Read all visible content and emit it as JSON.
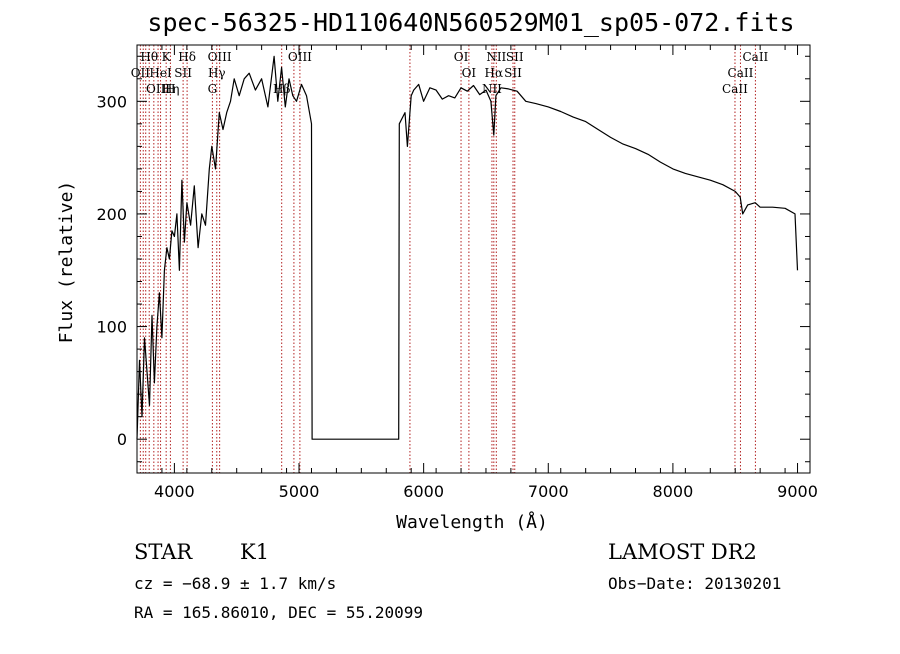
{
  "chart_data": {
    "type": "line",
    "title": "spec-56325-HD110640N560529M01_sp05-072.fits",
    "xlabel": "Wavelength (Å)",
    "ylabel": "Flux (relative)",
    "xlim": [
      3700,
      9100
    ],
    "ylim": [
      -30,
      350
    ],
    "grid": false,
    "x_ticks": [
      4000,
      5000,
      6000,
      7000,
      8000,
      9000
    ],
    "y_ticks": [
      0,
      100,
      200,
      300
    ],
    "series": [
      {
        "x": [
          3700,
          3720,
          3740,
          3760,
          3780,
          3800,
          3820,
          3840,
          3860,
          3880,
          3900,
          3920,
          3940,
          3960,
          3980,
          4000,
          4020,
          4040,
          4060,
          4080,
          4100,
          4130,
          4160,
          4190,
          4220,
          4250,
          4280,
          4300,
          4330,
          4360,
          4390,
          4420,
          4450,
          4480,
          4520,
          4560,
          4600,
          4650,
          4700,
          4750,
          4800,
          4830,
          4860,
          4890,
          4920,
          4950,
          4980,
          5020,
          5060,
          5100,
          5105,
          5800,
          5805,
          5850,
          5870,
          5900,
          5920,
          5960,
          6000,
          6050,
          6100,
          6150,
          6200,
          6250,
          6300,
          6350,
          6400,
          6450,
          6500,
          6540,
          6563,
          6580,
          6620,
          6680,
          6750,
          6820,
          6900,
          7000,
          7100,
          7200,
          7300,
          7400,
          7500,
          7600,
          7700,
          7800,
          7900,
          8000,
          8100,
          8200,
          8300,
          8400,
          8500,
          8540,
          8560,
          8600,
          8660,
          8700,
          8800,
          8900,
          8980,
          9000
        ],
        "y": [
          0,
          70,
          20,
          90,
          60,
          30,
          110,
          50,
          100,
          130,
          90,
          150,
          170,
          160,
          185,
          180,
          200,
          150,
          230,
          175,
          210,
          190,
          225,
          170,
          200,
          190,
          240,
          260,
          240,
          290,
          275,
          290,
          300,
          320,
          305,
          320,
          325,
          310,
          320,
          295,
          340,
          300,
          330,
          295,
          320,
          305,
          300,
          315,
          305,
          280,
          0,
          0,
          280,
          290,
          260,
          305,
          310,
          315,
          300,
          312,
          310,
          302,
          305,
          303,
          312,
          309,
          314,
          306,
          310,
          300,
          270,
          305,
          312,
          311,
          309,
          300,
          298,
          295,
          291,
          286,
          282,
          275,
          268,
          262,
          258,
          253,
          246,
          240,
          236,
          233,
          230,
          226,
          220,
          215,
          200,
          208,
          210,
          206,
          206,
          205,
          200,
          150
        ]
      }
    ],
    "line_labels": [
      {
        "text": "Hθ",
        "x": 3798,
        "row": 0
      },
      {
        "text": "K",
        "x": 3934,
        "row": 0
      },
      {
        "text": "Hδ",
        "x": 4102,
        "row": 0
      },
      {
        "text": "OIII",
        "x": 4363,
        "row": 0
      },
      {
        "text": "OIII",
        "x": 5007,
        "row": 0
      },
      {
        "text": "OI",
        "x": 6300,
        "row": 0
      },
      {
        "text": "NII",
        "x": 6583,
        "row": 0
      },
      {
        "text": "SII",
        "x": 6731,
        "row": 0
      },
      {
        "text": "CaII",
        "x": 8662,
        "row": 0
      },
      {
        "text": "OII",
        "x": 3727,
        "row": 1
      },
      {
        "text": "HeI",
        "x": 3889,
        "row": 1
      },
      {
        "text": "SII",
        "x": 4070,
        "row": 1
      },
      {
        "text": "Hγ",
        "x": 4340,
        "row": 1
      },
      {
        "text": "OI",
        "x": 6363,
        "row": 1
      },
      {
        "text": "Hα",
        "x": 6563,
        "row": 1
      },
      {
        "text": "SII",
        "x": 6717,
        "row": 1
      },
      {
        "text": "CaII",
        "x": 8542,
        "row": 1
      },
      {
        "text": "OIII",
        "x": 3869,
        "row": 2
      },
      {
        "text": "Hη",
        "x": 3970,
        "row": 2
      },
      {
        "text": "H",
        "x": 3968,
        "row": 2
      },
      {
        "text": "G",
        "x": 4305,
        "row": 2
      },
      {
        "text": "Hβ",
        "x": 4861,
        "row": 2
      },
      {
        "text": "NII",
        "x": 6548,
        "row": 2
      },
      {
        "text": "CaII",
        "x": 8498,
        "row": 2
      }
    ],
    "line_markers": [
      3727,
      3750,
      3770,
      3798,
      3835,
      3869,
      3889,
      3934,
      3968,
      4070,
      4102,
      4305,
      4340,
      4363,
      4861,
      4959,
      5007,
      5890,
      6300,
      6363,
      6548,
      6563,
      6583,
      6717,
      6731,
      8498,
      8542,
      8662
    ],
    "marker_color": "#b22222",
    "line_color": "#000000"
  },
  "info": {
    "object_class": "STAR",
    "subclass": "K1",
    "survey": "LAMOST DR2",
    "cz": "cz = −68.9 ± 1.7 km/s",
    "obs_date": "Obs−Date: 20130201",
    "radec": "RA = 165.86010, DEC =  55.20099"
  }
}
